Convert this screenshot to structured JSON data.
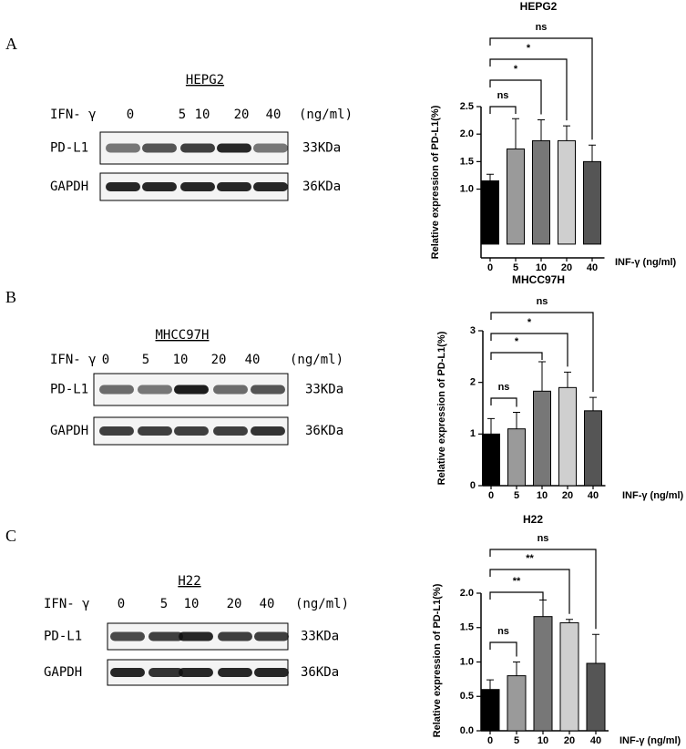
{
  "panels": [
    "A",
    "B",
    "C"
  ],
  "blots": [
    {
      "title": "HEPG2",
      "treatment": "IFN- γ",
      "concentrations": [
        "0",
        "5",
        "10",
        "20",
        "40"
      ],
      "unit": "(ng/ml)",
      "rows": [
        {
          "protein": "PD-L1",
          "size": "33KDa"
        },
        {
          "protein": "GAPDH",
          "size": "36KDa"
        }
      ]
    },
    {
      "title": "MHCC97H",
      "treatment": "IFN- γ",
      "concentrations": [
        "0",
        "5",
        "10",
        "20",
        "40"
      ],
      "unit": "(ng/ml)",
      "rows": [
        {
          "protein": "PD-L1",
          "size": "33KDa"
        },
        {
          "protein": "GAPDH",
          "size": "36KDa"
        }
      ]
    },
    {
      "title": "H22",
      "treatment": "IFN- γ",
      "concentrations": [
        "0",
        "5",
        "10",
        "20",
        "40"
      ],
      "unit": "(ng/ml)",
      "rows": [
        {
          "protein": "PD-L1",
          "size": "33KDa"
        },
        {
          "protein": "GAPDH",
          "size": "36KDa"
        }
      ]
    }
  ],
  "chart_data": [
    {
      "type": "bar",
      "title": "HEPG2",
      "y_label": "Relative expression of PD-L1(%)",
      "x_label": "INF-γ (ng/ml)",
      "categories": [
        "0",
        "5",
        "10",
        "20",
        "40"
      ],
      "values": [
        1.15,
        1.73,
        1.88,
        1.88,
        1.5
      ],
      "errors": [
        0.12,
        0.55,
        0.38,
        0.27,
        0.3
      ],
      "colors": [
        "#000000",
        "#9a9a9a",
        "#777777",
        "#cfcfcf",
        "#555555"
      ],
      "ylim": [
        -0.25,
        2.5
      ],
      "yticks": [
        {
          "value": 1,
          "label": "1.0"
        },
        1.5,
        {
          "value": 2,
          "label": "2.0"
        },
        2.5
      ],
      "significance": [
        "ns",
        "*",
        "*",
        "ns"
      ]
    },
    {
      "type": "bar",
      "title": "MHCC97H",
      "y_label": "Relative expression of PD-L1(%)",
      "x_label": "INF-γ (ng/ml)",
      "categories": [
        "0",
        "5",
        "10",
        "20",
        "40"
      ],
      "values": [
        1.0,
        1.1,
        1.83,
        1.9,
        1.45
      ],
      "errors": [
        0.3,
        0.32,
        0.57,
        0.3,
        0.26
      ],
      "colors": [
        "#000000",
        "#9a9a9a",
        "#777777",
        "#cfcfcf",
        "#555555"
      ],
      "ylim": [
        0,
        3
      ],
      "yticks": [
        0,
        1,
        2,
        3
      ],
      "significance": [
        "ns",
        "*",
        "*",
        "ns"
      ]
    },
    {
      "type": "bar",
      "title": "H22",
      "y_label": "Relative expression of PD-L1(%)",
      "x_label": "INF-γ (ng/ml)",
      "categories": [
        "0",
        "5",
        "10",
        "20",
        "40"
      ],
      "values": [
        0.6,
        0.8,
        1.66,
        1.57,
        0.98
      ],
      "errors": [
        0.14,
        0.2,
        0.24,
        0.05,
        0.42
      ],
      "colors": [
        "#000000",
        "#9a9a9a",
        "#777777",
        "#cfcfcf",
        "#555555"
      ],
      "ylim": [
        0,
        2
      ],
      "yticks": [
        {
          "value": 0,
          "label": "0.0"
        },
        0.5,
        {
          "value": 1,
          "label": "1.0"
        },
        1.5,
        {
          "value": 2,
          "label": "2.0"
        }
      ],
      "significance": [
        "ns",
        "**",
        "**",
        "ns"
      ]
    }
  ]
}
